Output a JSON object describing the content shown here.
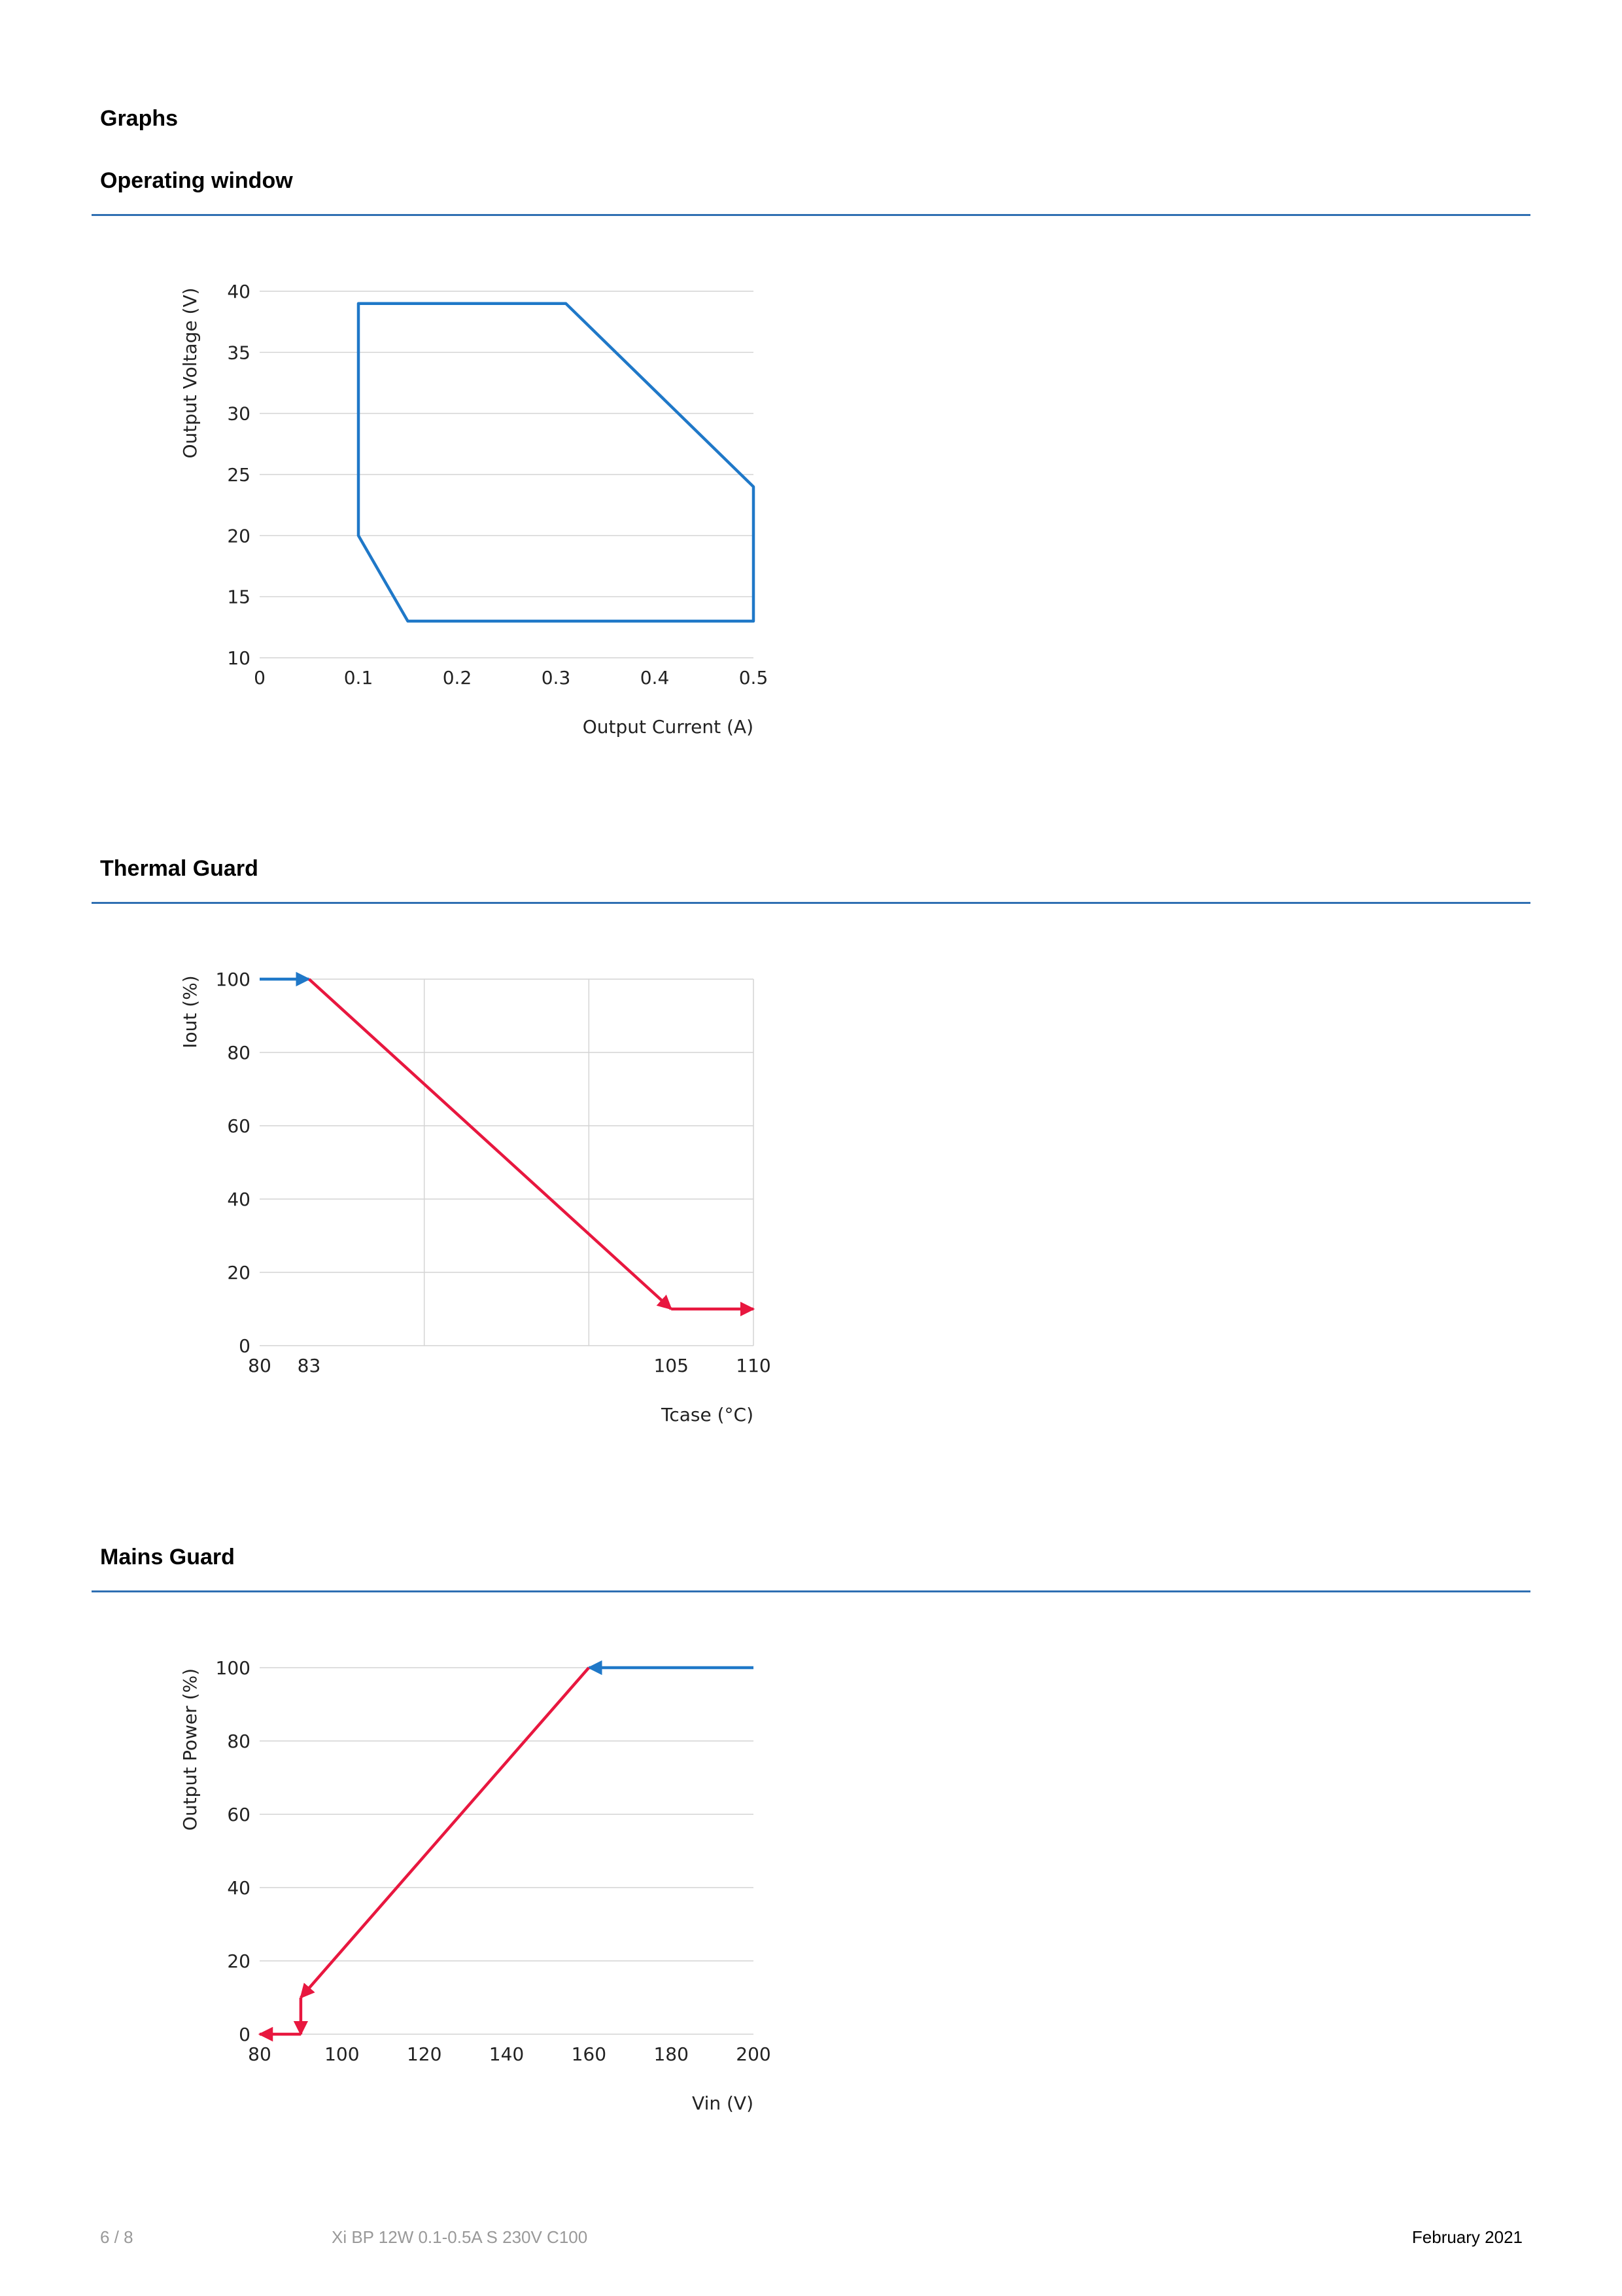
{
  "page": {
    "heading": "Graphs",
    "footer": {
      "page_number": "6 / 8",
      "product": "Xi BP 12W 0.1-0.5A S 230V C100",
      "date": "February 2021"
    }
  },
  "colors": {
    "rule": "#2f6fb2",
    "blue": "#1f78c8",
    "red": "#e8173f",
    "grid": "#d4d4d4"
  },
  "sections": [
    {
      "title": "Operating window"
    },
    {
      "title": "Thermal Guard"
    },
    {
      "title": "Mains Guard"
    }
  ],
  "chart_data": [
    {
      "type": "line",
      "title": "Operating window",
      "xlabel": "Output Current (A)",
      "ylabel": "Output Voltage (V)",
      "xlim": [
        0,
        0.5
      ],
      "ylim": [
        10,
        40
      ],
      "xticks": [
        0,
        0.1,
        0.2,
        0.3,
        0.4,
        0.5
      ],
      "xtick_labels": [
        "0",
        "0.1",
        "0.2",
        "0.3",
        "0.4",
        "0.5"
      ],
      "yticks": [
        10,
        15,
        20,
        25,
        30,
        35,
        40
      ],
      "ytick_labels": [
        "10",
        "15",
        "20",
        "25",
        "30",
        "35",
        "40"
      ],
      "grid": "horizontal",
      "series": [
        {
          "color": "#1f78c8",
          "closed": true,
          "x": [
            0.1,
            0.31,
            0.5,
            0.5,
            0.15,
            0.1
          ],
          "y": [
            39,
            39,
            24,
            13,
            13,
            20
          ]
        }
      ]
    },
    {
      "type": "line",
      "title": "Thermal Guard",
      "xlabel": "Tcase (°C)",
      "ylabel": "Iout (%)",
      "xlim": [
        80,
        110
      ],
      "ylim": [
        0,
        100
      ],
      "xticks": [
        80,
        83,
        105,
        110
      ],
      "xtick_labels": [
        "80",
        "83",
        "105",
        "110"
      ],
      "xgrid": [
        90,
        100,
        110
      ],
      "yticks": [
        0,
        20,
        40,
        60,
        80,
        100
      ],
      "ytick_labels": [
        "0",
        "20",
        "40",
        "60",
        "80",
        "100"
      ],
      "grid": "both",
      "series": [
        {
          "color": "#1f78c8",
          "x": [
            80,
            83
          ],
          "y": [
            100,
            100
          ],
          "arrow_end": true
        },
        {
          "color": "#e8173f",
          "x": [
            83,
            105
          ],
          "y": [
            100,
            10
          ],
          "arrow_end": true
        },
        {
          "color": "#e8173f",
          "x": [
            105,
            110
          ],
          "y": [
            10,
            10
          ],
          "arrow_end": true
        }
      ]
    },
    {
      "type": "line",
      "title": "Mains Guard",
      "xlabel": "Vin (V)",
      "ylabel": "Output Power (%)",
      "xlim": [
        80,
        200
      ],
      "ylim": [
        0,
        100
      ],
      "xticks": [
        80,
        100,
        120,
        140,
        160,
        180,
        200
      ],
      "xtick_labels": [
        "80",
        "100",
        "120",
        "140",
        "160",
        "180",
        "200"
      ],
      "yticks": [
        0,
        20,
        40,
        60,
        80,
        100
      ],
      "ytick_labels": [
        "0",
        "20",
        "40",
        "60",
        "80",
        "100"
      ],
      "grid": "horizontal",
      "series": [
        {
          "color": "#1f78c8",
          "x": [
            200,
            160
          ],
          "y": [
            100,
            100
          ],
          "arrow_end": true
        },
        {
          "color": "#e8173f",
          "x": [
            160,
            90
          ],
          "y": [
            100,
            10
          ],
          "arrow_end": true
        },
        {
          "color": "#e8173f",
          "x": [
            90,
            90
          ],
          "y": [
            10,
            0
          ],
          "arrow_end": true
        },
        {
          "color": "#e8173f",
          "x": [
            90,
            80
          ],
          "y": [
            0,
            0
          ],
          "arrow_end": true
        }
      ]
    }
  ]
}
